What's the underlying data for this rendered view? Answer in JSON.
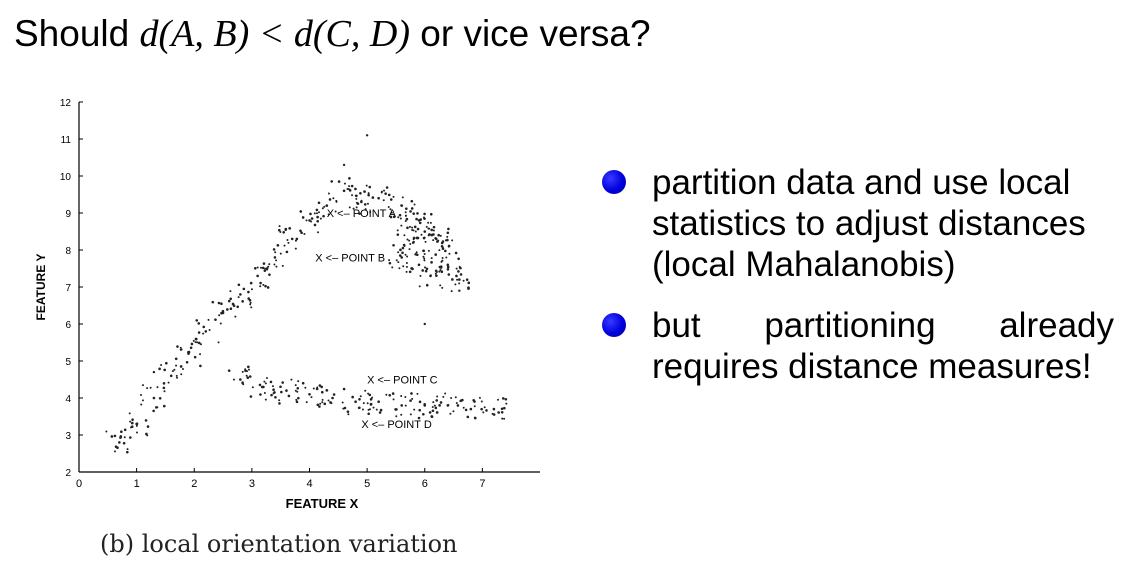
{
  "slide": {
    "title_prefix": "Should ",
    "title_math": "d(A, B) < d(C, D)",
    "title_suffix": " or vice versa?"
  },
  "figure": {
    "caption": "(b) local orientation variation",
    "point_labels": [
      "X <– POINT A",
      "X <– POINT B",
      "X <– POINT C",
      "X <– POINT D"
    ]
  },
  "bullets": [
    "partition data and use local statistics to adjust distances (local Mahalanobis)",
    "but partitioning already requires distance measures!"
  ],
  "colors": {
    "bullet": "#0000dd",
    "points": "#222222"
  },
  "chart_data": {
    "type": "scatter",
    "xlabel": "FEATURE X",
    "ylabel": "FEATURE Y",
    "xlim": [
      0,
      8
    ],
    "ylim": [
      2,
      12
    ],
    "x_ticks": [
      "0",
      "1",
      "2",
      "3",
      "4",
      "5",
      "6",
      "7"
    ],
    "y_ticks": [
      "2",
      "3",
      "4",
      "5",
      "6",
      "7",
      "8",
      "9",
      "10",
      "11",
      "12"
    ],
    "grid": false,
    "clusters": [
      {
        "points": [
          [
            0.7,
            2.8
          ],
          [
            1.0,
            3.3
          ],
          [
            1.3,
            4.0
          ],
          [
            1.6,
            4.6
          ],
          [
            1.9,
            5.2
          ],
          [
            2.2,
            5.8
          ],
          [
            2.5,
            6.3
          ],
          [
            2.8,
            6.8
          ],
          [
            3.1,
            7.3
          ],
          [
            3.4,
            7.8
          ],
          [
            3.7,
            8.3
          ],
          [
            4.0,
            8.8
          ],
          [
            4.3,
            9.2
          ],
          [
            4.6,
            9.6
          ],
          [
            4.9,
            9.3
          ],
          [
            5.2,
            9.4
          ],
          [
            5.6,
            9.2
          ],
          [
            5.9,
            8.8
          ]
        ]
      },
      {
        "points": [
          [
            5.6,
            7.8
          ],
          [
            5.8,
            8.2
          ],
          [
            6.0,
            8.5
          ],
          [
            6.2,
            8.3
          ],
          [
            6.4,
            7.6
          ],
          [
            6.1,
            7.3
          ],
          [
            5.9,
            7.6
          ],
          [
            6.3,
            8.1
          ],
          [
            6.6,
            7.2
          ],
          [
            5.7,
            8.6
          ]
        ]
      },
      {
        "points": [
          [
            2.8,
            4.5
          ],
          [
            3.2,
            4.3
          ],
          [
            3.6,
            4.2
          ],
          [
            4.0,
            4.1
          ],
          [
            4.4,
            4.0
          ],
          [
            4.8,
            3.9
          ],
          [
            5.2,
            3.9
          ],
          [
            5.6,
            3.8
          ],
          [
            6.0,
            3.8
          ],
          [
            6.4,
            3.8
          ],
          [
            6.8,
            3.7
          ],
          [
            7.2,
            3.7
          ]
        ]
      }
    ],
    "points": [
      {
        "label": "X <– POINT A",
        "x": 4.3,
        "y": 9.0
      },
      {
        "label": "X <– POINT B",
        "x": 4.1,
        "y": 7.8
      },
      {
        "label": "X <– POINT C",
        "x": 5.0,
        "y": 4.5
      },
      {
        "label": "X <– POINT D",
        "x": 4.9,
        "y": 3.3
      }
    ]
  }
}
